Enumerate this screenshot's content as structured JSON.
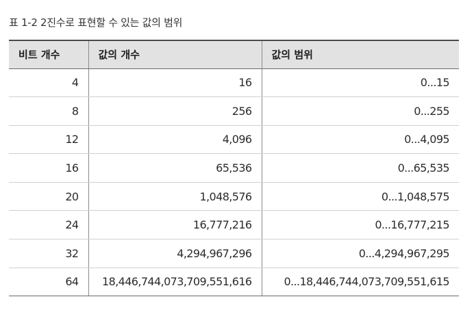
{
  "caption": "표 1-2  2진수로 표현할 수 있는 값의 범위",
  "table": {
    "headers": [
      "비트 개수",
      "값의 개수",
      "값의 범위"
    ],
    "rows": [
      [
        "4",
        "16",
        "0...15"
      ],
      [
        "8",
        "256",
        "0...255"
      ],
      [
        "12",
        "4,096",
        "0...4,095"
      ],
      [
        "16",
        "65,536",
        "0...65,535"
      ],
      [
        "20",
        "1,048,576",
        "0...1,048,575"
      ],
      [
        "24",
        "16,777,216",
        "0...16,777,215"
      ],
      [
        "32",
        "4,294,967,296",
        "0...4,294,967,295"
      ],
      [
        "64",
        "18,446,744,073,709,551,616",
        "0...18,446,744,073,709,551,615"
      ]
    ]
  }
}
